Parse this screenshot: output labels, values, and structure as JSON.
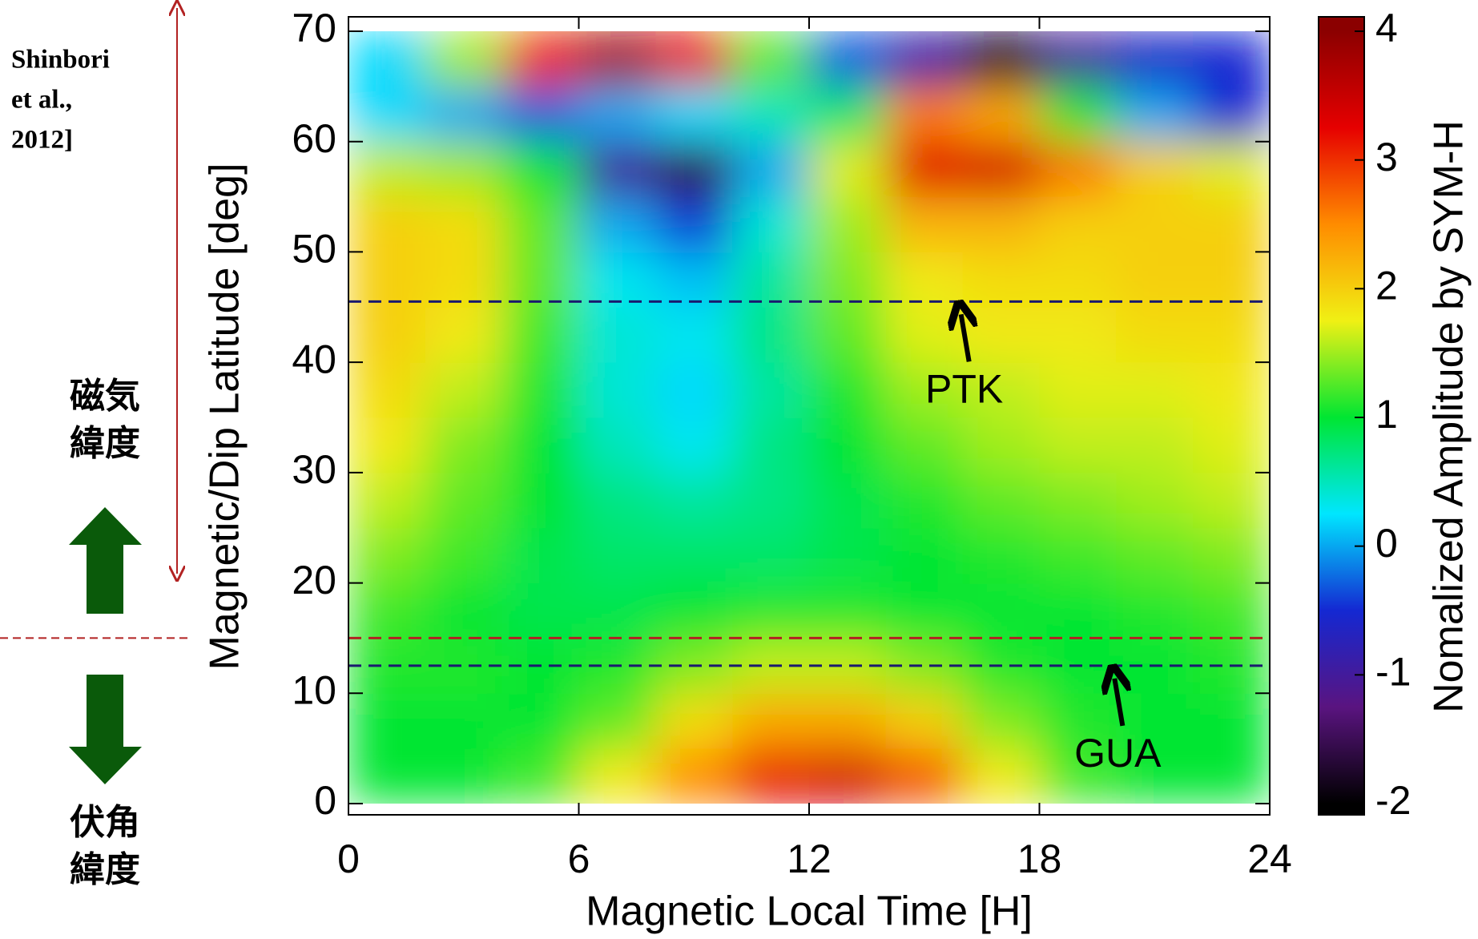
{
  "chart_data": {
    "type": "heatmap",
    "xlabel": "Magnetic Local Time [H]",
    "ylabel": "Magnetic/Dip Latitude [deg]",
    "xlim": [
      0,
      24
    ],
    "xticks": [
      0,
      6,
      12,
      18,
      24
    ],
    "ylim": [
      0,
      70
    ],
    "yticks": [
      0,
      10,
      20,
      30,
      40,
      50,
      60,
      70
    ],
    "x_bins": [
      0,
      2,
      4,
      6,
      8,
      10,
      12,
      14,
      16,
      18,
      20,
      22,
      24
    ],
    "y_bins": [
      0,
      5,
      10,
      15,
      20,
      25,
      30,
      35,
      40,
      45,
      50,
      55,
      60,
      65,
      70
    ],
    "z": [
      [
        1,
        1,
        1.2,
        1.8,
        2.5,
        3.2,
        3.4,
        2.8,
        1.8,
        1.2,
        1,
        1
      ],
      [
        1,
        1,
        1,
        1.3,
        1.9,
        2.3,
        2.3,
        2,
        1.4,
        1.1,
        1,
        1
      ],
      [
        1.1,
        1.1,
        1,
        1.1,
        1.4,
        1.6,
        1.6,
        1.4,
        1.1,
        1,
        1,
        1.1
      ],
      [
        1.2,
        1,
        0.9,
        0.9,
        1,
        1.1,
        1.1,
        1,
        1,
        1,
        1.1,
        1.2
      ],
      [
        1.4,
        1.2,
        0.9,
        0.8,
        0.8,
        0.8,
        0.9,
        1,
        1.1,
        1.2,
        1.3,
        1.4
      ],
      [
        1.6,
        1.3,
        1,
        0.7,
        0.6,
        0.7,
        0.9,
        1.1,
        1.3,
        1.4,
        1.5,
        1.6
      ],
      [
        1.8,
        1.4,
        1,
        0.5,
        0.3,
        0.7,
        1,
        1.3,
        1.5,
        1.6,
        1.6,
        1.7
      ],
      [
        1.9,
        1.6,
        1.1,
        0.4,
        0.2,
        0.6,
        1.1,
        1.5,
        1.6,
        1.7,
        1.7,
        1.8
      ],
      [
        2,
        1.8,
        1.2,
        0.4,
        0.3,
        0.7,
        1.3,
        1.7,
        1.8,
        1.8,
        1.9,
        1.9
      ],
      [
        2,
        1.9,
        1.3,
        0.3,
        0.1,
        0.6,
        1.4,
        1.8,
        1.9,
        1.9,
        2,
        2
      ],
      [
        2,
        1.9,
        1.3,
        0,
        -0.4,
        0.4,
        1.5,
        2.2,
        2.2,
        2,
        2,
        2
      ],
      [
        1.6,
        1.5,
        1,
        -1,
        -1.6,
        0,
        1.7,
        3.3,
        3.4,
        2.6,
        2,
        1.7
      ],
      [
        0.2,
        0,
        -0.3,
        0,
        0.2,
        0.5,
        0.8,
        2.6,
        2.3,
        1.1,
        0,
        -0.5
      ],
      [
        0.2,
        1.5,
        3,
        3.8,
        3.2,
        1.3,
        -0.3,
        -0.9,
        -1.8,
        -1,
        -0.6,
        -0.5
      ]
    ],
    "colorbar": {
      "label": "Nomalized Amplitude by SYM-H",
      "zlim": [
        -2,
        4
      ],
      "zticks": [
        -2,
        -1,
        0,
        1,
        2,
        3,
        4
      ],
      "colormap": [
        "#000000",
        "#5a1480",
        "#1428d2",
        "#00e6ff",
        "#00e632",
        "#f0f014",
        "#ff8c00",
        "#e60000",
        "#8b0000"
      ]
    },
    "hlines": [
      {
        "y": 45.5,
        "color": "#1a1a6e"
      },
      {
        "y": 15,
        "color": "#b22222"
      },
      {
        "y": 12.5,
        "color": "#1a1a6e"
      }
    ],
    "annotations": [
      {
        "text": "PTK",
        "x": 16,
        "y": 45.5
      },
      {
        "text": "GUA",
        "x": 20,
        "y": 12.5
      }
    ]
  },
  "side_notes": {
    "citation": [
      "Shinbori",
      "et al.,",
      "2012]"
    ],
    "upper": [
      "磁気",
      "緯度"
    ],
    "lower": [
      "伏角",
      "緯度"
    ]
  }
}
